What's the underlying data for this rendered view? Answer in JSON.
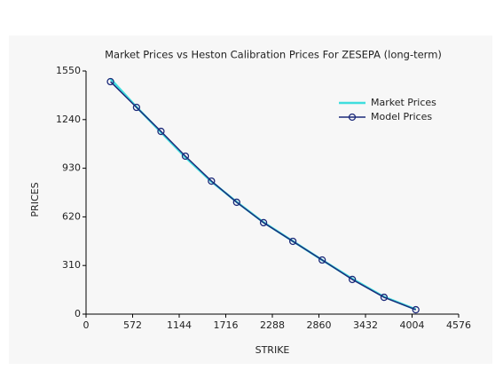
{
  "chart_data": {
    "type": "line",
    "title": "Market Prices vs Heston Calibration Prices For ZESEPA (long-term)",
    "x_label": "STRIKE",
    "y_label": "PRICES",
    "xlim": [
      0,
      4576
    ],
    "xticks": [
      0,
      572,
      1144,
      1716,
      2288,
      2860,
      3432,
      4004,
      4576
    ],
    "ylim": [
      0,
      1550
    ],
    "yticks": [
      0,
      310,
      620,
      930,
      1240,
      1550
    ],
    "legend": "upper right",
    "series": [
      {
        "name": "Market Prices",
        "color": "#3fdede",
        "marker": false,
        "x": [
          300,
          620,
          920,
          1220,
          1540,
          1850,
          2180,
          2540,
          2900,
          3270,
          3660,
          4050
        ],
        "values": [
          1500,
          1320,
          1160,
          1000,
          845,
          715,
          585,
          465,
          345,
          225,
          110,
          30
        ]
      },
      {
        "name": "Model Prices",
        "color": "#1c2a7a",
        "marker": true,
        "x": [
          300,
          620,
          920,
          1220,
          1540,
          1850,
          2180,
          2540,
          2900,
          3270,
          3660,
          4050
        ],
        "values": [
          1482,
          1318,
          1165,
          1007,
          848,
          713,
          583,
          464,
          345,
          221,
          107,
          28
        ]
      }
    ]
  }
}
